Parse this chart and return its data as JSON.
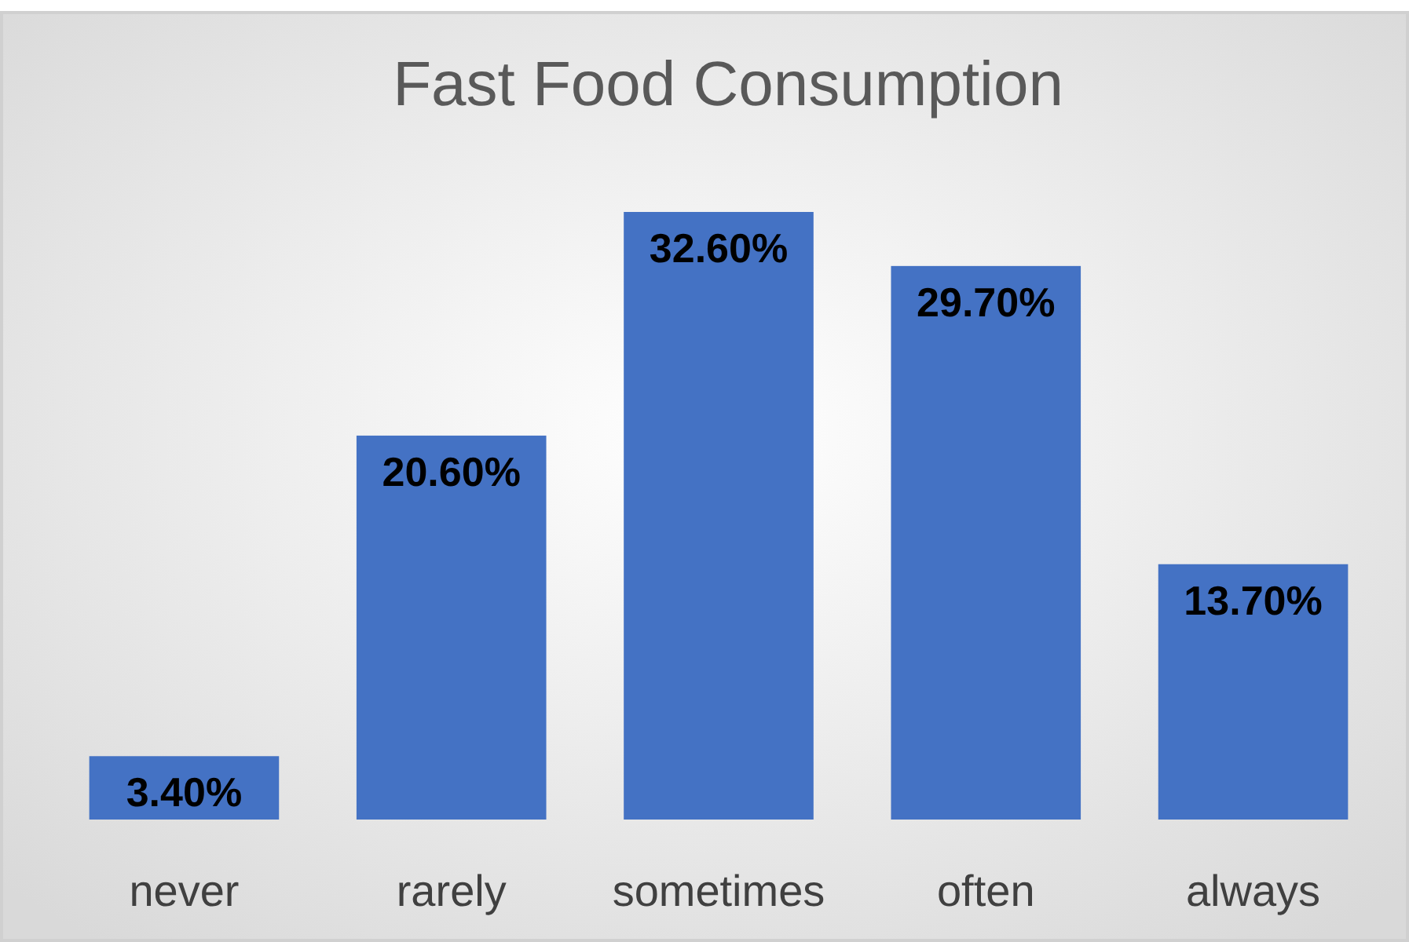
{
  "chart_data": {
    "type": "bar",
    "title": "Fast Food Consumption",
    "categories": [
      "never",
      "rarely",
      "sometimes",
      "often",
      "always"
    ],
    "values": [
      3.4,
      20.6,
      32.6,
      29.7,
      13.7
    ],
    "value_labels": [
      "3.40%",
      "20.60%",
      "32.60%",
      "29.70%",
      "13.70%"
    ],
    "color": "#4472c4"
  }
}
